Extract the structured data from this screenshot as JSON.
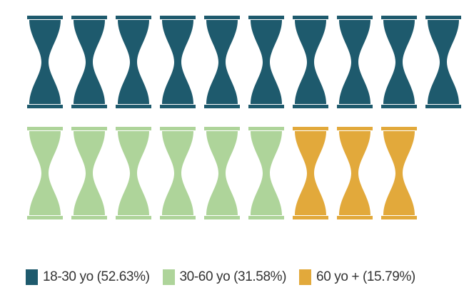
{
  "chart_data": {
    "type": "pictograph",
    "icon": "hourglass-icon",
    "total_icons": 19,
    "icons_per_row": 10,
    "grid": false,
    "legend_position": "bottom",
    "series": [
      {
        "name": "18-30 yo",
        "percent": 52.63,
        "count": 10,
        "color": "#1e5a6d",
        "legend_label": "18-30 yo (52.63%)"
      },
      {
        "name": "30-60 yo",
        "percent": 31.58,
        "count": 6,
        "color": "#aed49a",
        "legend_label": "30-60 yo (31.58%)"
      },
      {
        "name": "60 yo +",
        "percent": 15.79,
        "count": 3,
        "color": "#e2a93b",
        "legend_label": "60 yo + (15.79%)"
      }
    ]
  }
}
